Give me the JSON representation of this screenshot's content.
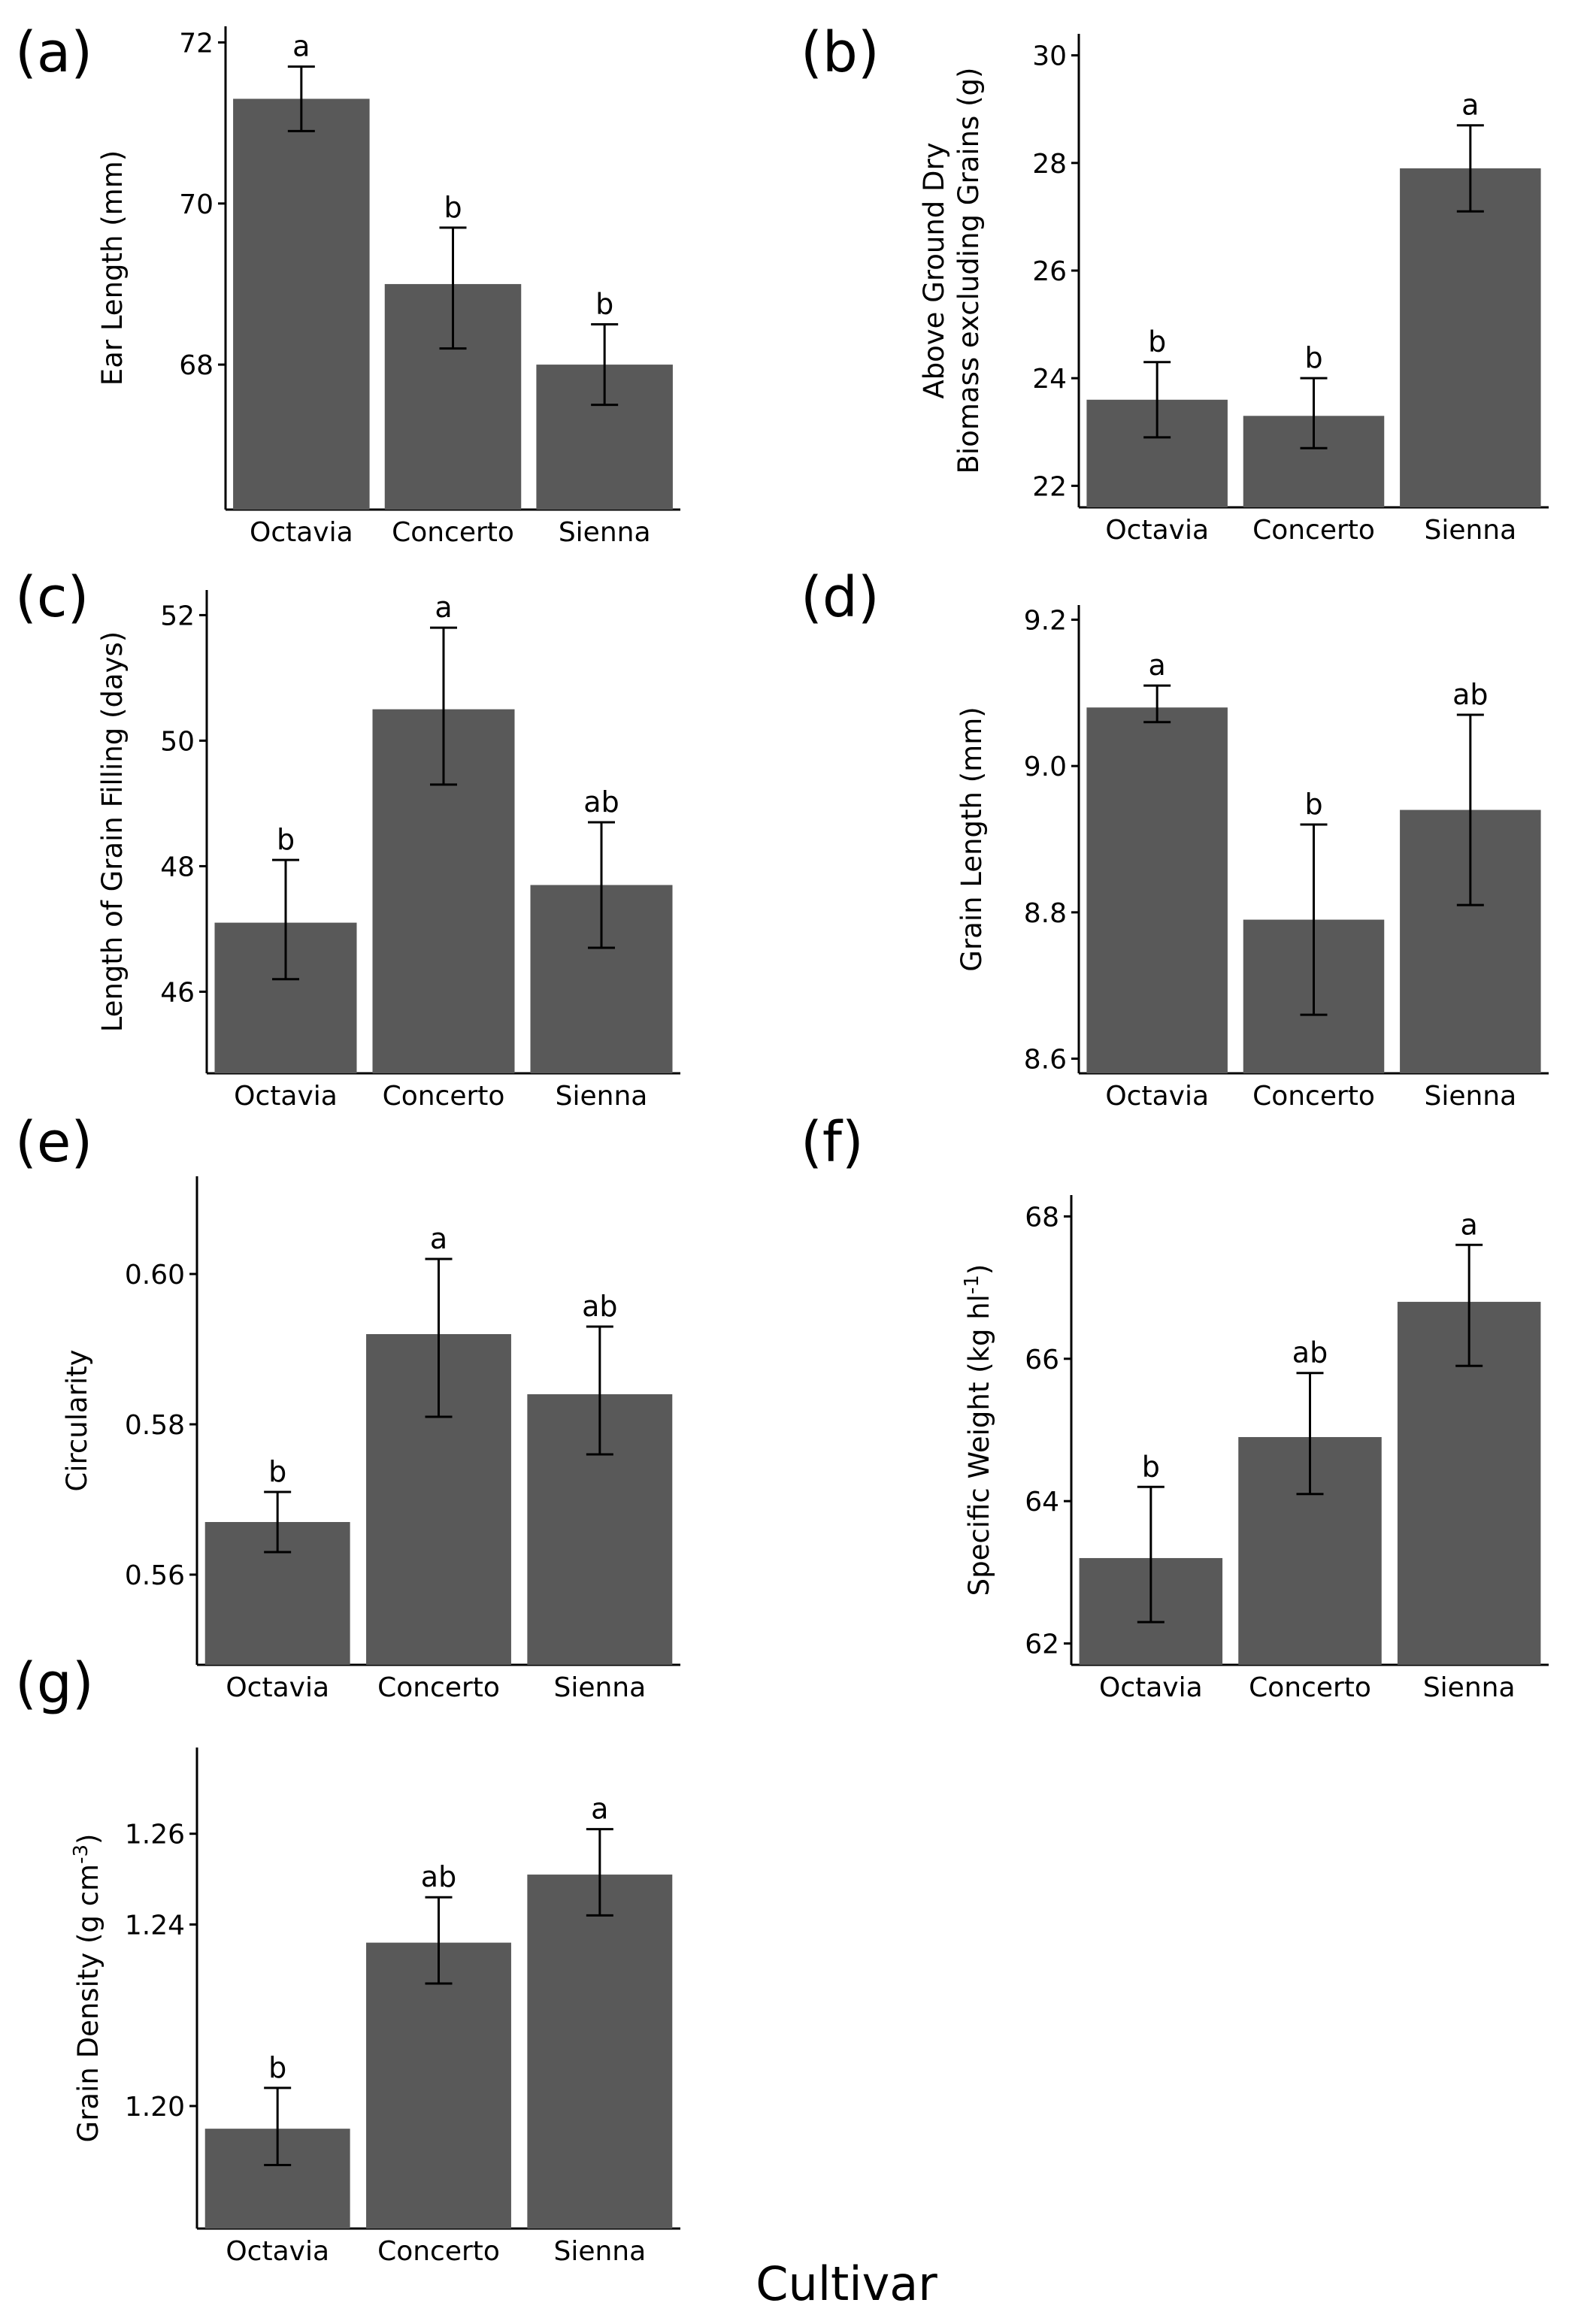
{
  "x_title": "Cultivar",
  "chart_data": [
    {
      "id": "a",
      "label": "(a)",
      "type": "bar",
      "ylabel": [
        "Ear Length (mm)"
      ],
      "ylim": [
        66.2,
        72.2
      ],
      "yticks": [
        68,
        70,
        72
      ],
      "categories": [
        "Octavia",
        "Concerto",
        "Sienna"
      ],
      "values": [
        71.3,
        69.0,
        68.0
      ],
      "err_low": [
        70.9,
        68.2,
        67.5
      ],
      "err_high": [
        71.7,
        69.7,
        68.5
      ],
      "letters": [
        "a",
        "b",
        "b"
      ]
    },
    {
      "id": "b",
      "label": "(b)",
      "type": "bar",
      "ylabel": [
        "Above Ground Dry",
        "Biomass excluding Grains (g)"
      ],
      "ylim": [
        21.6,
        30.4
      ],
      "yticks": [
        22,
        24,
        26,
        28,
        30
      ],
      "categories": [
        "Octavia",
        "Concerto",
        "Sienna"
      ],
      "values": [
        23.6,
        23.3,
        27.9
      ],
      "err_low": [
        22.9,
        22.7,
        27.1
      ],
      "err_high": [
        24.3,
        24.0,
        28.7
      ],
      "letters": [
        "b",
        "b",
        "a"
      ]
    },
    {
      "id": "c",
      "label": "(c)",
      "type": "bar",
      "ylabel": [
        "Length of Grain Filling (days)"
      ],
      "ylim": [
        44.7,
        52.4
      ],
      "yticks": [
        46,
        48,
        50,
        52
      ],
      "categories": [
        "Octavia",
        "Concerto",
        "Sienna"
      ],
      "values": [
        47.1,
        50.5,
        47.7
      ],
      "err_low": [
        46.2,
        49.3,
        46.7
      ],
      "err_high": [
        48.1,
        51.8,
        48.7
      ],
      "letters": [
        "b",
        "a",
        "ab"
      ]
    },
    {
      "id": "d",
      "label": "(d)",
      "type": "bar",
      "ylabel": [
        "Grain Length (mm)"
      ],
      "ylim": [
        8.58,
        9.22
      ],
      "yticks": [
        8.6,
        8.8,
        9.0,
        9.2
      ],
      "categories": [
        "Octavia",
        "Concerto",
        "Sienna"
      ],
      "values": [
        9.08,
        8.79,
        8.94
      ],
      "err_low": [
        9.06,
        8.66,
        8.81
      ],
      "err_high": [
        9.11,
        8.92,
        9.07
      ],
      "letters": [
        "a",
        "b",
        "ab"
      ]
    },
    {
      "id": "e",
      "label": "(e)",
      "type": "bar",
      "ylabel": [
        "Circularity"
      ],
      "ylim": [
        0.548,
        0.613
      ],
      "yticks": [
        0.56,
        0.58,
        0.6
      ],
      "ytick_labels": [
        "0.56",
        "0.58",
        "0.60"
      ],
      "categories": [
        "Octavia",
        "Concerto",
        "Sienna"
      ],
      "values": [
        0.567,
        0.592,
        0.584
      ],
      "err_low": [
        0.563,
        0.581,
        0.576
      ],
      "err_high": [
        0.571,
        0.602,
        0.593
      ],
      "letters": [
        "b",
        "a",
        "ab"
      ]
    },
    {
      "id": "f",
      "label": "(f)",
      "type": "bar",
      "ylabel": [
        "Specific Weight (kg hl",
        "-1",
        ")"
      ],
      "ylim": [
        61.7,
        68.3
      ],
      "yticks": [
        62,
        64,
        66,
        68
      ],
      "categories": [
        "Octavia",
        "Concerto",
        "Sienna"
      ],
      "values": [
        63.2,
        64.9,
        66.8
      ],
      "err_low": [
        62.3,
        64.1,
        65.9
      ],
      "err_high": [
        64.2,
        65.8,
        67.6
      ],
      "letters": [
        "b",
        "ab",
        "a"
      ]
    },
    {
      "id": "g",
      "label": "(g)",
      "type": "bar",
      "ylabel": [
        "Grain Density (g cm",
        "-3",
        ")"
      ],
      "ylim": [
        1.173,
        1.279
      ],
      "yticks": [
        1.2,
        1.24,
        1.26
      ],
      "ytick_labels": [
        "1.20",
        "1.24",
        "1.26"
      ],
      "categories": [
        "Octavia",
        "Concerto",
        "Sienna"
      ],
      "values": [
        1.195,
        1.236,
        1.251
      ],
      "err_low": [
        1.187,
        1.227,
        1.242
      ],
      "err_high": [
        1.204,
        1.246,
        1.261
      ],
      "letters": [
        "b",
        "ab",
        "a"
      ]
    }
  ]
}
